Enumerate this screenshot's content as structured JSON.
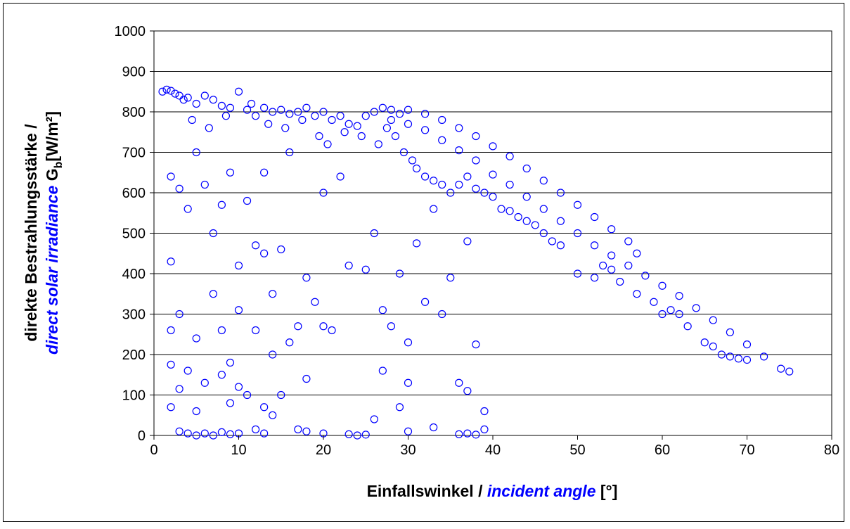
{
  "chart_data": {
    "type": "scatter",
    "xlabel": [
      "Einfallswinkel /",
      "incident angle",
      "[°]"
    ],
    "ylabel": [
      "direkte Bestrahlungsstärke /",
      "direct solar irradiance",
      "G",
      "b",
      "[W/m²]"
    ],
    "xlim": [
      0,
      80
    ],
    "xticks": [
      0,
      10,
      20,
      30,
      40,
      50,
      60,
      70,
      80
    ],
    "ylim": [
      0,
      1000
    ],
    "yticks": [
      0,
      100,
      200,
      300,
      400,
      500,
      600,
      700,
      800,
      900,
      1000
    ],
    "grid": true,
    "x": [
      1,
      1.5,
      2,
      2.5,
      3,
      3.5,
      4,
      5,
      6,
      7,
      8,
      9,
      10,
      11,
      12,
      13,
      14,
      15,
      16,
      17,
      18,
      19,
      20,
      21,
      22,
      23,
      24,
      25,
      26,
      27,
      28,
      29,
      4.5,
      6.5,
      8.5,
      11.5,
      13.5,
      15.5,
      17.5,
      19.5,
      20.5,
      22.5,
      24.5,
      26.5,
      27.5,
      28.5,
      29.5,
      30.5,
      31,
      32,
      33,
      34,
      35,
      36,
      37,
      38,
      39,
      40,
      41,
      42,
      43,
      44,
      45,
      46,
      47,
      48,
      50,
      52,
      53,
      54,
      55,
      57,
      59,
      60,
      61,
      62,
      63,
      65,
      66,
      67,
      68,
      69,
      70,
      30,
      32,
      34,
      36,
      38,
      40,
      42,
      44,
      46,
      48,
      50,
      52,
      54,
      56,
      57,
      28,
      30,
      32,
      34,
      36,
      38,
      40,
      42,
      44,
      46,
      48,
      50,
      52,
      54,
      56,
      58,
      60,
      62,
      64,
      66,
      68,
      70,
      72,
      74,
      75,
      2,
      2,
      3,
      4,
      5,
      6,
      7,
      8,
      9,
      10,
      11,
      12,
      13,
      14,
      15,
      16,
      17,
      18,
      19,
      20,
      21,
      22,
      23,
      25,
      26,
      27,
      28,
      29,
      30,
      31,
      32,
      33,
      35,
      36,
      37,
      38,
      3,
      5,
      7,
      8,
      9,
      10,
      12,
      13,
      14,
      15,
      16,
      18,
      20,
      27,
      30,
      34,
      2,
      2,
      3,
      4,
      6,
      8,
      9,
      10,
      13,
      26,
      29,
      37,
      39,
      3,
      4,
      5,
      6,
      7,
      8,
      9,
      10,
      12,
      13,
      14,
      17,
      18,
      20,
      23,
      24,
      25,
      30,
      33,
      36,
      37,
      38,
      39,
      2,
      5,
      11
    ],
    "series": [
      {
        "color": "#0000ff",
        "values": [
          850,
          855,
          852,
          845,
          840,
          830,
          835,
          820,
          840,
          830,
          815,
          810,
          850,
          805,
          790,
          810,
          800,
          805,
          795,
          800,
          810,
          790,
          800,
          780,
          790,
          770,
          765,
          790,
          800,
          810,
          805,
          795,
          780,
          760,
          790,
          820,
          770,
          760,
          780,
          740,
          720,
          750,
          740,
          720,
          760,
          740,
          700,
          680,
          660,
          640,
          630,
          620,
          600,
          620,
          640,
          610,
          600,
          590,
          560,
          555,
          540,
          530,
          520,
          500,
          480,
          470,
          400,
          390,
          420,
          410,
          380,
          350,
          330,
          300,
          310,
          300,
          270,
          230,
          220,
          200,
          195,
          190,
          187,
          805,
          795,
          780,
          760,
          740,
          715,
          690,
          660,
          630,
          600,
          570,
          540,
          510,
          480,
          450,
          780,
          770,
          755,
          730,
          705,
          680,
          645,
          620,
          590,
          560,
          530,
          500,
          470,
          445,
          420,
          395,
          370,
          345,
          315,
          285,
          255,
          225,
          195,
          165,
          158,
          430,
          640,
          610,
          560,
          700,
          620,
          500,
          570,
          650,
          420,
          580,
          470,
          650,
          350,
          460,
          700,
          270,
          390,
          330,
          600,
          260,
          640,
          420,
          410,
          500,
          310,
          270,
          400,
          130,
          475,
          330,
          560,
          390,
          130,
          480,
          225,
          300,
          240,
          350,
          260,
          180,
          310,
          260,
          450,
          200,
          100,
          230,
          140,
          270,
          160,
          230,
          300,
          260,
          175,
          115,
          160,
          130,
          150,
          80,
          120,
          70,
          40,
          70,
          110,
          60,
          10,
          5,
          0,
          5,
          0,
          8,
          3,
          5,
          15,
          5,
          50,
          15,
          10,
          5,
          3,
          0,
          2,
          10,
          20,
          3,
          5,
          2,
          15,
          70,
          60,
          100
        ]
      }
    ]
  }
}
